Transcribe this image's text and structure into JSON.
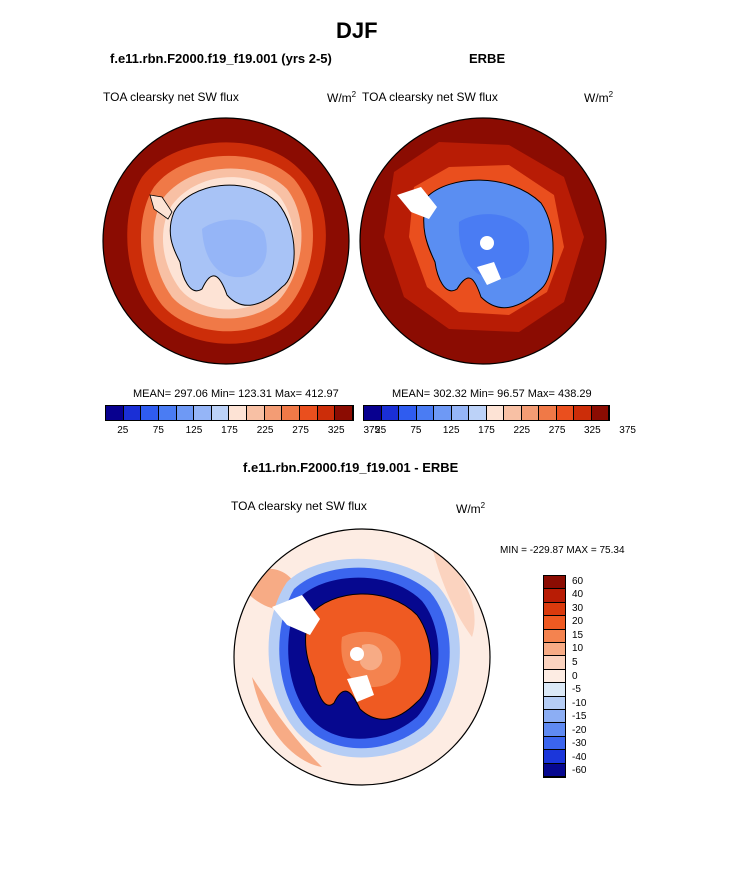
{
  "title": "DJF",
  "panels": [
    {
      "header": "f.e11.rbn.F2000.f19_f19.001 (yrs 2-5)",
      "variable": "TOA clearsky net SW flux",
      "units_base": "W/m",
      "units_exp": "2",
      "stats": "MEAN= 297.06  Min= 123.31  Max= 412.97",
      "colorbar_labels": [
        "25",
        "75",
        "125",
        "175",
        "225",
        "275",
        "325",
        "375"
      ]
    },
    {
      "header": "ERBE",
      "variable": "TOA clearsky net SW flux",
      "units_base": "W/m",
      "units_exp": "2",
      "stats": "MEAN= 302.32  Min=  96.57  Max= 438.29",
      "colorbar_labels": [
        "25",
        "75",
        "125",
        "175",
        "225",
        "275",
        "325",
        "375"
      ]
    }
  ],
  "diff": {
    "header": "f.e11.rbn.F2000.f19_f19.001 - ERBE",
    "variable": "TOA clearsky net SW flux",
    "units_base": "W/m",
    "units_exp": "2",
    "minmax": "MIN = -229.87 MAX =  75.34",
    "colorbar_labels": [
      "60",
      "40",
      "30",
      "20",
      "15",
      "10",
      "5",
      "0",
      "-5",
      "-10",
      "-15",
      "-20",
      "-30",
      "-40",
      "-60"
    ]
  },
  "colors": {
    "seq": [
      "#08008f",
      "#1a2fd6",
      "#2f5cf0",
      "#4a7cf3",
      "#6e99f5",
      "#95b5f7",
      "#bcd2f8",
      "#fde3d5",
      "#f8c0a4",
      "#f39c74",
      "#f07947",
      "#ea4f1e",
      "#cc2d09",
      "#8b0c02"
    ],
    "div": [
      "#8b0c02",
      "#b81c05",
      "#da3a0d",
      "#ef5a22",
      "#f4834f",
      "#f7ab85",
      "#fbd3bf",
      "#fdece3",
      "#dbe9f7",
      "#b5cdf5",
      "#8caef4",
      "#5f8af2",
      "#3b65ee",
      "#1b36da",
      "#06088f"
    ],
    "land_low": "#a8c3f6",
    "land_obs": "#5a8ef2",
    "ocean": "#8b0c02",
    "outline": "#000000"
  }
}
